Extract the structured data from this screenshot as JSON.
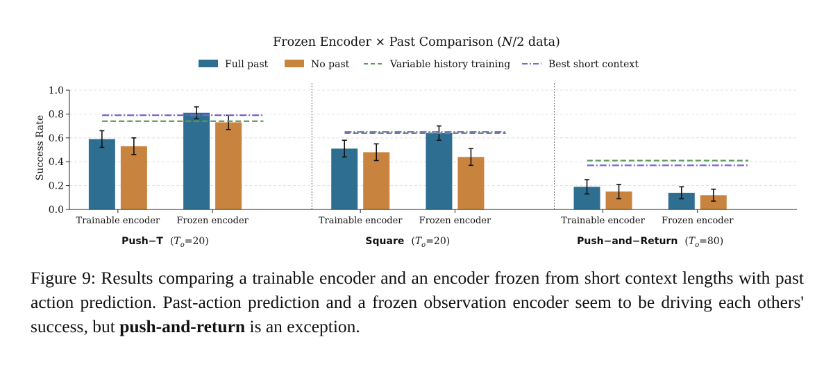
{
  "chart_data": {
    "type": "bar",
    "title": "Frozen Encoder × Past Comparison (",
    "title_italic": "N",
    "title_rest": "/2 data)",
    "ylabel": "Success Rate",
    "ylim": [
      0,
      1.0
    ],
    "yticks": [
      "0.0",
      "0.2",
      "0.4",
      "0.6",
      "0.8",
      "1.0"
    ],
    "grid": true,
    "legend_position": "top-center",
    "legend": [
      {
        "label": "Full past",
        "kind": "bar",
        "color": "#2e6f91"
      },
      {
        "label": "No past",
        "kind": "bar",
        "color": "#c8843e"
      },
      {
        "label": "Variable history training",
        "kind": "dashed",
        "color": "#5a9a5a"
      },
      {
        "label": "Best short context",
        "kind": "dashdot",
        "color": "#7b63d6"
      }
    ],
    "categories": [
      "Trainable encoder",
      "Frozen encoder"
    ],
    "panels": [
      {
        "task": "Push−T",
        "context_label": "T",
        "context_sub": "o",
        "context_value": "=20)",
        "series": [
          {
            "name": "Full past",
            "values": [
              0.59,
              0.81
            ],
            "errors": [
              0.07,
              0.05
            ]
          },
          {
            "name": "No past",
            "values": [
              0.53,
              0.73
            ],
            "errors": [
              0.07,
              0.06
            ]
          }
        ],
        "variable_history": 0.74,
        "best_short_context": 0.79
      },
      {
        "task": "Square",
        "context_label": "T",
        "context_sub": "o",
        "context_value": "=20)",
        "series": [
          {
            "name": "Full past",
            "values": [
              0.51,
              0.64
            ],
            "errors": [
              0.07,
              0.06
            ]
          },
          {
            "name": "No past",
            "values": [
              0.48,
              0.44
            ],
            "errors": [
              0.07,
              0.07
            ]
          }
        ],
        "variable_history": 0.64,
        "best_short_context": 0.65
      },
      {
        "task": "Push−and−Return",
        "context_label": "T",
        "context_sub": "o",
        "context_value": "=80)",
        "series": [
          {
            "name": "Full past",
            "values": [
              0.19,
              0.14
            ],
            "errors": [
              0.06,
              0.05
            ]
          },
          {
            "name": "No past",
            "values": [
              0.15,
              0.12
            ],
            "errors": [
              0.06,
              0.05
            ]
          }
        ],
        "variable_history": 0.41,
        "best_short_context": 0.37
      }
    ]
  },
  "caption": {
    "text_before": "Figure 9: Results comparing a trainable encoder and an encoder frozen from short context lengths with past action prediction. Past-action prediction and a frozen observation encoder seem to be driving each others' success, but ",
    "bold": "push-and-return",
    "text_after": " is an exception."
  }
}
